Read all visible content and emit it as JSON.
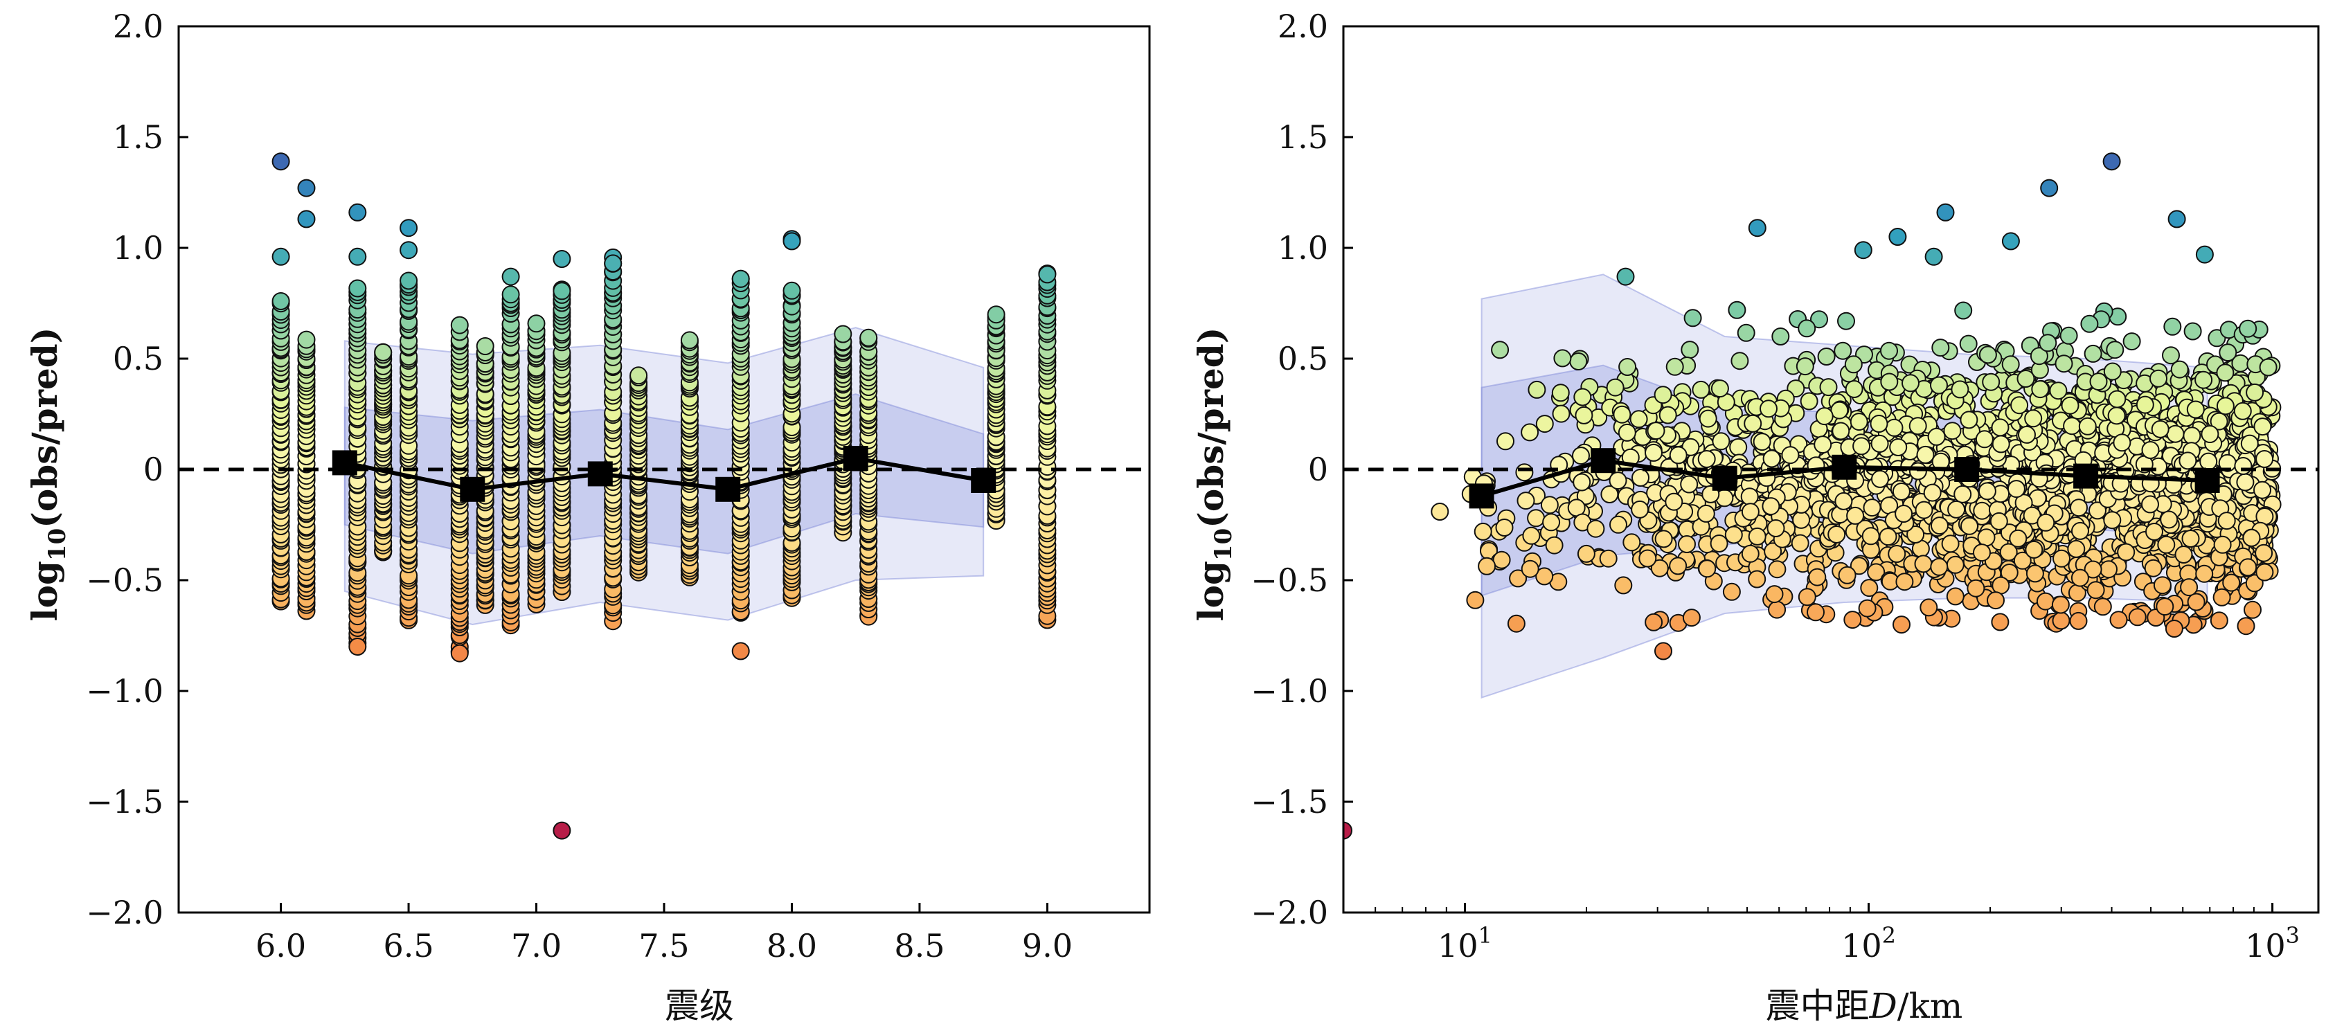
{
  "chart_data": [
    {
      "type": "scatter",
      "xlabel": "震级",
      "ylabel_parts": {
        "base": "log",
        "sub": "10",
        "rest": "(obs/pred)"
      },
      "x_scale": "linear",
      "xlim": [
        5.6,
        9.4
      ],
      "ylim": [
        -2.0,
        2.0
      ],
      "x_ticks": [
        6.0,
        6.5,
        7.0,
        7.5,
        8.0,
        8.5,
        9.0
      ],
      "x_tick_labels": [
        "6.0",
        "6.5",
        "7.0",
        "7.5",
        "8.0",
        "8.5",
        "9.0"
      ],
      "y_ticks": [
        2.0,
        1.5,
        1.0,
        0.5,
        0,
        -0.5,
        -1.0,
        -1.5,
        -2.0
      ],
      "y_tick_labels": [
        "2.0",
        "1.5",
        "1.0",
        "0.5",
        "0",
        "−0.5",
        "−1.0",
        "−1.5",
        "−2.0"
      ],
      "reference_line_y": 0,
      "grid": false,
      "magnitude_columns": [
        {
          "x": 6.0,
          "ymin": -0.6,
          "ymax": 0.76
        },
        {
          "x": 6.1,
          "ymin": -0.64,
          "ymax": 0.58
        },
        {
          "x": 6.3,
          "ymin": -0.78,
          "ymax": 0.82
        },
        {
          "x": 6.4,
          "ymin": -0.38,
          "ymax": 0.54
        },
        {
          "x": 6.5,
          "ymin": -0.69,
          "ymax": 0.86
        },
        {
          "x": 6.7,
          "ymin": -0.83,
          "ymax": 0.64
        },
        {
          "x": 6.8,
          "ymin": -0.62,
          "ymax": 0.56
        },
        {
          "x": 6.9,
          "ymin": -0.7,
          "ymax": 0.8
        },
        {
          "x": 7.0,
          "ymin": -0.6,
          "ymax": 0.65
        },
        {
          "x": 7.1,
          "ymin": -0.56,
          "ymax": 0.82
        },
        {
          "x": 7.3,
          "ymin": -0.67,
          "ymax": 0.95
        },
        {
          "x": 7.4,
          "ymin": -0.47,
          "ymax": 0.43
        },
        {
          "x": 7.6,
          "ymin": -0.5,
          "ymax": 0.59
        },
        {
          "x": 7.8,
          "ymin": -0.65,
          "ymax": 0.85
        },
        {
          "x": 8.0,
          "ymin": -0.58,
          "ymax": 0.81
        },
        {
          "x": 8.2,
          "ymin": -0.27,
          "ymax": 0.6
        },
        {
          "x": 8.3,
          "ymin": -0.67,
          "ymax": 0.6
        },
        {
          "x": 8.8,
          "ymin": -0.23,
          "ymax": 0.7
        },
        {
          "x": 9.0,
          "ymin": -0.67,
          "ymax": 0.88
        }
      ],
      "outliers": [
        {
          "x": 6.0,
          "y": 1.39
        },
        {
          "x": 6.1,
          "y": 1.27
        },
        {
          "x": 6.1,
          "y": 1.13
        },
        {
          "x": 6.3,
          "y": 1.16
        },
        {
          "x": 6.3,
          "y": 0.96
        },
        {
          "x": 6.5,
          "y": 1.09
        },
        {
          "x": 6.5,
          "y": 0.99
        },
        {
          "x": 6.0,
          "y": 0.96
        },
        {
          "x": 6.9,
          "y": 0.87
        },
        {
          "x": 7.1,
          "y": 0.95
        },
        {
          "x": 7.3,
          "y": 0.93
        },
        {
          "x": 8.0,
          "y": 1.04
        },
        {
          "x": 8.0,
          "y": 1.03
        },
        {
          "x": 7.8,
          "y": 0.86
        },
        {
          "x": 9.0,
          "y": 0.88
        },
        {
          "x": 6.3,
          "y": -0.8
        },
        {
          "x": 7.8,
          "y": -0.82
        },
        {
          "x": 6.7,
          "y": -0.83
        },
        {
          "x": 7.1,
          "y": -1.63
        }
      ],
      "bin_means": {
        "x": [
          6.25,
          6.75,
          7.25,
          7.75,
          8.25,
          8.75
        ],
        "y": [
          0.03,
          -0.09,
          -0.02,
          -0.09,
          0.05,
          -0.05
        ]
      },
      "band_inner": {
        "x": [
          6.25,
          6.75,
          7.25,
          7.75,
          8.25,
          8.75
        ],
        "upper": [
          0.28,
          0.22,
          0.27,
          0.18,
          0.34,
          0.16
        ],
        "lower": [
          -0.25,
          -0.38,
          -0.3,
          -0.38,
          -0.2,
          -0.26
        ]
      },
      "band_outer": {
        "x": [
          6.25,
          6.75,
          7.25,
          7.75,
          8.25,
          8.75
        ],
        "upper": [
          0.58,
          0.52,
          0.56,
          0.48,
          0.64,
          0.46
        ],
        "lower": [
          -0.55,
          -0.7,
          -0.6,
          -0.68,
          -0.5,
          -0.48
        ]
      },
      "colormap": "Spectral",
      "colors": {
        "band": "#7b86d6",
        "marker": "#000000",
        "dashed": "#000000"
      }
    },
    {
      "type": "scatter",
      "xlabel_parts": {
        "prefix": "震中距",
        "var": "D",
        "suffix": "/km"
      },
      "ylabel_parts": {
        "base": "log",
        "sub": "10",
        "rest": "(obs/pred)"
      },
      "x_scale": "log",
      "xlim": [
        5,
        1300
      ],
      "ylim": [
        -2.0,
        2.0
      ],
      "x_ticks": [
        10,
        100,
        1000
      ],
      "x_tick_labels": [
        {
          "base": "10",
          "exp": "1"
        },
        {
          "base": "10",
          "exp": "2"
        },
        {
          "base": "10",
          "exp": "3"
        }
      ],
      "y_ticks": [
        2.0,
        1.5,
        1.0,
        0.5,
        0,
        -0.5,
        -1.0,
        -1.5,
        -2.0
      ],
      "y_tick_labels": [
        "2.0",
        "1.5",
        "1.0",
        "0.5",
        "0",
        "−0.5",
        "−1.0",
        "−1.5",
        "−2.0"
      ],
      "reference_line_y": 0,
      "grid": false,
      "distance_cloud": {
        "x_range": [
          8,
          1000
        ],
        "y_center": -0.05
      },
      "outliers": [
        {
          "x": 53,
          "y": 1.09
        },
        {
          "x": 97,
          "y": 0.99
        },
        {
          "x": 118,
          "y": 1.05
        },
        {
          "x": 145,
          "y": 0.96
        },
        {
          "x": 155,
          "y": 1.16
        },
        {
          "x": 225,
          "y": 1.03
        },
        {
          "x": 280,
          "y": 1.27
        },
        {
          "x": 400,
          "y": 1.39
        },
        {
          "x": 580,
          "y": 1.13
        },
        {
          "x": 680,
          "y": 0.97
        },
        {
          "x": 25,
          "y": 0.87
        },
        {
          "x": 31,
          "y": -0.82
        },
        {
          "x": 5,
          "y": -1.63
        }
      ],
      "bin_means": {
        "x": [
          11,
          22,
          44,
          87,
          175,
          345,
          690
        ],
        "y": [
          -0.12,
          0.04,
          -0.04,
          0.01,
          0.0,
          -0.03,
          -0.05
        ]
      },
      "band_inner": {
        "x": [
          11,
          22,
          44,
          87,
          175,
          345,
          690
        ],
        "upper": [
          0.37,
          0.47,
          0.27,
          0.26,
          0.25,
          0.23,
          0.2
        ],
        "lower": [
          -0.57,
          -0.39,
          -0.34,
          -0.29,
          -0.27,
          -0.27,
          -0.3
        ]
      },
      "band_outer": {
        "x": [
          11,
          22,
          44,
          87,
          175,
          345,
          690
        ],
        "upper": [
          0.77,
          0.88,
          0.6,
          0.56,
          0.52,
          0.5,
          0.46
        ],
        "lower": [
          -1.03,
          -0.85,
          -0.65,
          -0.6,
          -0.58,
          -0.58,
          -0.6
        ]
      },
      "colormap": "Spectral",
      "colors": {
        "band": "#7b86d6",
        "marker": "#000000",
        "dashed": "#000000"
      }
    }
  ]
}
